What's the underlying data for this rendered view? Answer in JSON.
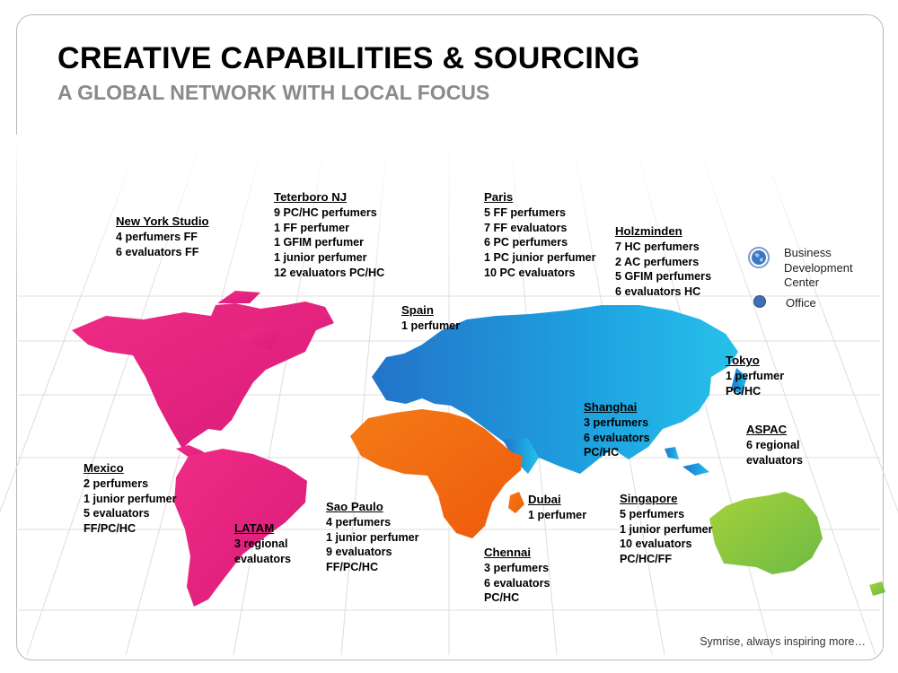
{
  "slide": {
    "title": "CREATIVE CAPABILITIES & SOURCING",
    "subtitle": "A GLOBAL NETWORK WITH LOCAL FOCUS",
    "footer": "Symrise, always inspiring more…"
  },
  "legend": {
    "bdc": "Business Development Center",
    "office": "Office"
  },
  "colors": {
    "americas": "#e8237f",
    "africa": "#f26a10",
    "eurasia": "#1f8fd6",
    "australia": "#8cc63f",
    "bdc_marker": "#3b78c2",
    "office_marker": "#3e6fb4"
  },
  "locations": {
    "new_york": {
      "name": "New York Studio",
      "lines": [
        "4 perfumers FF",
        "6 evaluators FF"
      ]
    },
    "teterboro": {
      "name": "Teterboro NJ",
      "lines": [
        "9 PC/HC perfumers",
        "1 FF perfumer",
        "1 GFIM perfumer",
        "1 junior perfumer",
        "12 evaluators PC/HC"
      ]
    },
    "paris": {
      "name": "Paris",
      "lines": [
        "5 FF perfumers",
        "7 FF evaluators",
        "6 PC perfumers",
        "1 PC junior perfumer",
        "10 PC evaluators"
      ]
    },
    "holzminden": {
      "name": "Holzminden",
      "lines": [
        "7 HC perfumers",
        "2 AC perfumers",
        "5 GFIM perfumers",
        "6 evaluators HC"
      ]
    },
    "spain": {
      "name": "Spain",
      "lines": [
        "1 perfumer"
      ]
    },
    "tokyo": {
      "name": "Tokyo",
      "lines": [
        "1 perfumer",
        "PC/HC"
      ]
    },
    "shanghai": {
      "name": "Shanghai",
      "lines": [
        "3 perfumers",
        "6 evaluators",
        "PC/HC"
      ]
    },
    "aspac": {
      "name": "ASPAC",
      "lines": [
        "6 regional",
        "evaluators"
      ]
    },
    "mexico": {
      "name": "Mexico",
      "lines": [
        "2 perfumers",
        "1 junior perfumer",
        "5 evaluators",
        "FF/PC/HC"
      ]
    },
    "latam": {
      "name": "LATAM",
      "lines": [
        "3 regional",
        "evaluators"
      ]
    },
    "sao_paulo": {
      "name": "Sao Paulo",
      "lines": [
        "4 perfumers",
        "1 junior perfumer",
        "9 evaluators",
        "FF/PC/HC"
      ]
    },
    "dubai": {
      "name": "Dubai",
      "lines": [
        "1 perfumer"
      ]
    },
    "chennai": {
      "name": "Chennai",
      "lines": [
        "3 perfumers",
        "6 evaluators",
        "PC/HC"
      ]
    },
    "singapore": {
      "name": "Singapore",
      "lines": [
        "5 perfumers",
        "1 junior perfumer",
        "10 evaluators",
        "PC/HC/FF"
      ]
    }
  }
}
